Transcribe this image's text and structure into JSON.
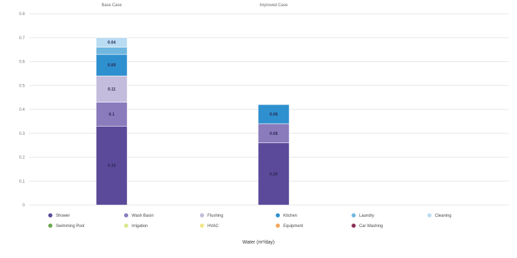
{
  "chart_data": {
    "type": "bar",
    "stacked": true,
    "xlabel": "Water (m³/day)",
    "ylim": [
      0,
      0.8
    ],
    "yticks": [
      0,
      0.1,
      0.2,
      0.3,
      0.4,
      0.5,
      0.6,
      0.7,
      0.8
    ],
    "ytick_labels": [
      "0",
      "0.1",
      "0.2",
      "0.3",
      "0.4",
      "0.5",
      "0.6",
      "0.7",
      "0.8"
    ],
    "grid": true,
    "legend_placement": "bottom",
    "categories": [
      "Base Case",
      "Improved Case"
    ],
    "series": [
      {
        "name": "Shower",
        "color": "#5b4a9a",
        "values": [
          0.33,
          0.26
        ],
        "labels": [
          "0.33",
          "0.26"
        ]
      },
      {
        "name": "Wash Basin",
        "color": "#8a7bbd",
        "values": [
          0.1,
          0.08
        ],
        "labels": [
          "0.1",
          "0.08"
        ]
      },
      {
        "name": "Flushing",
        "color": "#c4bcdc",
        "values": [
          0.11,
          0.0
        ],
        "labels": [
          "0.11",
          ""
        ]
      },
      {
        "name": "Kitchen",
        "color": "#2f90cf",
        "values": [
          0.09,
          0.08
        ],
        "labels": [
          "0.09",
          "0.08"
        ]
      },
      {
        "name": "Laundry",
        "color": "#6fb7df",
        "values": [
          0.03,
          0.0
        ],
        "labels": [
          "",
          ""
        ]
      },
      {
        "name": "Cleaning",
        "color": "#b9dcf2",
        "values": [
          0.04,
          0.0
        ],
        "labels": [
          "0.04",
          ""
        ]
      },
      {
        "name": "Swimming Pool",
        "color": "#6aa84f",
        "values": [
          0,
          0
        ],
        "labels": [
          "",
          ""
        ]
      },
      {
        "name": "Irrigation",
        "color": "#d9e88a",
        "values": [
          0,
          0
        ],
        "labels": [
          "",
          ""
        ]
      },
      {
        "name": "HVAC",
        "color": "#f3e48a",
        "values": [
          0,
          0
        ],
        "labels": [
          "",
          ""
        ]
      },
      {
        "name": "Equipment",
        "color": "#f4a55a",
        "values": [
          0,
          0
        ],
        "labels": [
          "",
          ""
        ]
      },
      {
        "name": "Car Washing",
        "color": "#8e2f56",
        "values": [
          0,
          0
        ],
        "labels": [
          "",
          ""
        ]
      }
    ]
  }
}
